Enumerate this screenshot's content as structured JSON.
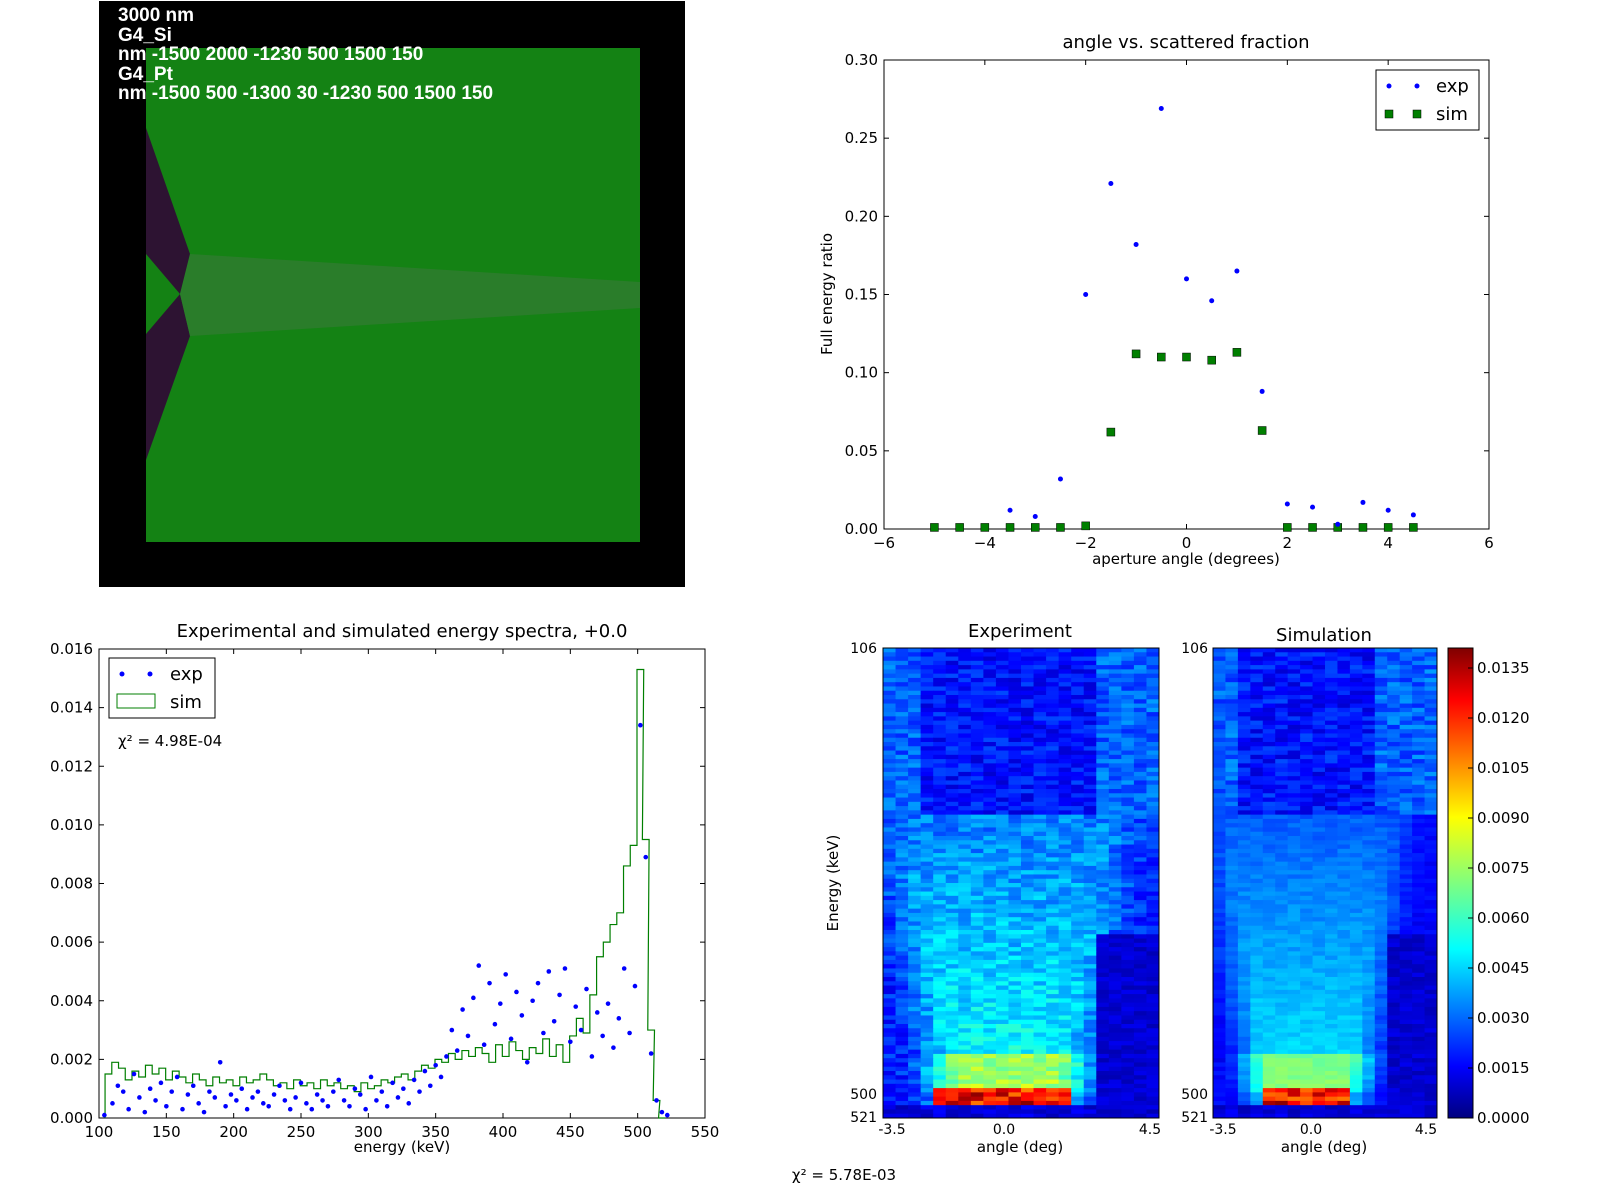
{
  "geometry_panel": {
    "labels": [
      "3000 nm",
      "G4_Si",
      "nm -1500 2000 -1230 500 1500 150",
      "G4_Pt",
      "nm -1500 500 -1300 30 -1230 500 1500 150"
    ],
    "colors": {
      "background": "#000000",
      "si": "#148214",
      "pt": "#2d1332",
      "beam": "#2a7d2a"
    }
  },
  "chart_data": [
    {
      "type": "scatter",
      "title": "angle vs. scattered fraction",
      "xlabel": "aperture angle (degrees)",
      "ylabel": "Full energy ratio",
      "xlim": [
        -6,
        6
      ],
      "ylim": [
        0,
        0.3
      ],
      "xticks": [
        "−6",
        "−4",
        "−2",
        "0",
        "2",
        "4",
        "6"
      ],
      "yticks": [
        "0.00",
        "0.05",
        "0.10",
        "0.15",
        "0.20",
        "0.25",
        "0.30"
      ],
      "legend": {
        "position": "top-right",
        "entries": [
          "exp",
          "sim"
        ]
      },
      "series": [
        {
          "name": "exp",
          "color": "#0000ff",
          "marker": "dot",
          "points": [
            [
              -3.5,
              0.012
            ],
            [
              -3,
              0.008
            ],
            [
              -2.5,
              0.032
            ],
            [
              -2,
              0.15
            ],
            [
              -1.5,
              0.221
            ],
            [
              -1,
              0.182
            ],
            [
              -0.5,
              0.269
            ],
            [
              0,
              0.16
            ],
            [
              0.5,
              0.146
            ],
            [
              1,
              0.165
            ],
            [
              1.5,
              0.088
            ],
            [
              2,
              0.016
            ],
            [
              2.5,
              0.014
            ],
            [
              3,
              0.003
            ],
            [
              3.5,
              0.017
            ],
            [
              4,
              0.012
            ],
            [
              4.5,
              0.009
            ]
          ]
        },
        {
          "name": "sim",
          "color": "#007f00",
          "marker": "square",
          "points": [
            [
              -5,
              0.001
            ],
            [
              -4.5,
              0.001
            ],
            [
              -4,
              0.001
            ],
            [
              -3.5,
              0.001
            ],
            [
              -3,
              0.001
            ],
            [
              -2.5,
              0.001
            ],
            [
              -2,
              0.002
            ],
            [
              -1.5,
              0.062
            ],
            [
              -1,
              0.112
            ],
            [
              -0.5,
              0.11
            ],
            [
              0,
              0.11
            ],
            [
              0.5,
              0.108
            ],
            [
              1,
              0.113
            ],
            [
              1.5,
              0.063
            ],
            [
              2,
              0.001
            ],
            [
              2.5,
              0.001
            ],
            [
              3,
              0.001
            ],
            [
              3.5,
              0.001
            ],
            [
              4,
              0.001
            ],
            [
              4.5,
              0.001
            ]
          ]
        }
      ]
    },
    {
      "type": "line",
      "title": "Experimental and simulated energy spectra, +0.0",
      "xlabel": "energy (keV)",
      "ylabel": "",
      "xlim": [
        100,
        550
      ],
      "ylim": [
        0,
        0.016
      ],
      "xticks": [
        "100",
        "150",
        "200",
        "250",
        "300",
        "350",
        "400",
        "450",
        "500",
        "550"
      ],
      "yticks": [
        "0.000",
        "0.002",
        "0.004",
        "0.006",
        "0.008",
        "0.010",
        "0.012",
        "0.014",
        "0.016"
      ],
      "legend": {
        "position": "top-left",
        "entries": [
          "exp",
          "sim"
        ]
      },
      "annotation": "χ² = 4.98E-04",
      "series": [
        {
          "name": "exp",
          "color": "#0000ff",
          "marker": "dot",
          "style": "scatter",
          "points": [
            [
              104,
              0.0001
            ],
            [
              110,
              0.0005
            ],
            [
              114,
              0.0011
            ],
            [
              118,
              0.0009
            ],
            [
              122,
              0.0003
            ],
            [
              126,
              0.0015
            ],
            [
              130,
              0.0007
            ],
            [
              134,
              0.0002
            ],
            [
              138,
              0.001
            ],
            [
              142,
              0.0006
            ],
            [
              146,
              0.0012
            ],
            [
              150,
              0.0004
            ],
            [
              154,
              0.0009
            ],
            [
              158,
              0.0014
            ],
            [
              162,
              0.0003
            ],
            [
              166,
              0.0008
            ],
            [
              170,
              0.0011
            ],
            [
              174,
              0.0005
            ],
            [
              178,
              0.0002
            ],
            [
              182,
              0.0009
            ],
            [
              186,
              0.0007
            ],
            [
              190,
              0.0019
            ],
            [
              194,
              0.0004
            ],
            [
              198,
              0.0008
            ],
            [
              202,
              0.0006
            ],
            [
              206,
              0.001
            ],
            [
              210,
              0.0003
            ],
            [
              214,
              0.0007
            ],
            [
              218,
              0.0009
            ],
            [
              222,
              0.0005
            ],
            [
              226,
              0.0004
            ],
            [
              230,
              0.0008
            ],
            [
              234,
              0.0011
            ],
            [
              238,
              0.0006
            ],
            [
              242,
              0.0003
            ],
            [
              246,
              0.0007
            ],
            [
              250,
              0.0012
            ],
            [
              254,
              0.0005
            ],
            [
              258,
              0.0003
            ],
            [
              262,
              0.0008
            ],
            [
              266,
              0.0006
            ],
            [
              270,
              0.0004
            ],
            [
              274,
              0.0009
            ],
            [
              278,
              0.0013
            ],
            [
              282,
              0.0006
            ],
            [
              286,
              0.0004
            ],
            [
              290,
              0.001
            ],
            [
              294,
              0.0008
            ],
            [
              298,
              0.0003
            ],
            [
              302,
              0.0014
            ],
            [
              306,
              0.0006
            ],
            [
              310,
              0.0009
            ],
            [
              314,
              0.0004
            ],
            [
              318,
              0.0012
            ],
            [
              322,
              0.0007
            ],
            [
              326,
              0.001
            ],
            [
              330,
              0.0005
            ],
            [
              334,
              0.0013
            ],
            [
              338,
              0.0009
            ],
            [
              342,
              0.0016
            ],
            [
              346,
              0.0011
            ],
            [
              350,
              0.0018
            ],
            [
              354,
              0.0014
            ],
            [
              358,
              0.0021
            ],
            [
              362,
              0.003
            ],
            [
              366,
              0.0023
            ],
            [
              370,
              0.0037
            ],
            [
              374,
              0.0028
            ],
            [
              378,
              0.0041
            ],
            [
              382,
              0.0052
            ],
            [
              386,
              0.0025
            ],
            [
              390,
              0.0046
            ],
            [
              394,
              0.0032
            ],
            [
              398,
              0.0039
            ],
            [
              402,
              0.0049
            ],
            [
              406,
              0.0027
            ],
            [
              410,
              0.0043
            ],
            [
              414,
              0.0035
            ],
            [
              418,
              0.0019
            ],
            [
              422,
              0.004
            ],
            [
              426,
              0.0046
            ],
            [
              430,
              0.0029
            ],
            [
              434,
              0.005
            ],
            [
              438,
              0.0033
            ],
            [
              442,
              0.0042
            ],
            [
              446,
              0.0051
            ],
            [
              450,
              0.0026
            ],
            [
              454,
              0.0038
            ],
            [
              458,
              0.003
            ],
            [
              462,
              0.0044
            ],
            [
              466,
              0.0021
            ],
            [
              470,
              0.0036
            ],
            [
              474,
              0.0028
            ],
            [
              478,
              0.0039
            ],
            [
              482,
              0.0024
            ],
            [
              486,
              0.0034
            ],
            [
              490,
              0.0051
            ],
            [
              494,
              0.0029
            ],
            [
              498,
              0.0045
            ],
            [
              502,
              0.0134
            ],
            [
              506,
              0.0089
            ],
            [
              510,
              0.0022
            ],
            [
              514,
              0.0006
            ],
            [
              518,
              0.0002
            ],
            [
              522,
              0.0001
            ]
          ]
        },
        {
          "name": "sim",
          "color": "#007f00",
          "style": "step",
          "points": [
            [
              107,
              0.0015
            ],
            [
              112,
              0.0019
            ],
            [
              117,
              0.0017
            ],
            [
              122,
              0.0013
            ],
            [
              127,
              0.0016
            ],
            [
              132,
              0.0014
            ],
            [
              137,
              0.0018
            ],
            [
              142,
              0.0015
            ],
            [
              147,
              0.0017
            ],
            [
              152,
              0.0013
            ],
            [
              157,
              0.0016
            ],
            [
              162,
              0.0014
            ],
            [
              167,
              0.0012
            ],
            [
              172,
              0.0015
            ],
            [
              177,
              0.0013
            ],
            [
              182,
              0.0011
            ],
            [
              187,
              0.0014
            ],
            [
              192,
              0.0012
            ],
            [
              197,
              0.0013
            ],
            [
              202,
              0.0011
            ],
            [
              207,
              0.0014
            ],
            [
              212,
              0.0012
            ],
            [
              217,
              0.0013
            ],
            [
              222,
              0.0015
            ],
            [
              227,
              0.0013
            ],
            [
              232,
              0.0011
            ],
            [
              237,
              0.0012
            ],
            [
              242,
              0.001
            ],
            [
              247,
              0.0013
            ],
            [
              252,
              0.0011
            ],
            [
              257,
              0.0012
            ],
            [
              262,
              0.001
            ],
            [
              267,
              0.0013
            ],
            [
              272,
              0.0011
            ],
            [
              277,
              0.0012
            ],
            [
              282,
              0.001
            ],
            [
              287,
              0.0011
            ],
            [
              292,
              0.0009
            ],
            [
              297,
              0.0012
            ],
            [
              302,
              0.001
            ],
            [
              307,
              0.0011
            ],
            [
              312,
              0.0013
            ],
            [
              317,
              0.0012
            ],
            [
              322,
              0.0014
            ],
            [
              327,
              0.0015
            ],
            [
              332,
              0.0013
            ],
            [
              337,
              0.0016
            ],
            [
              342,
              0.0018
            ],
            [
              347,
              0.0017
            ],
            [
              352,
              0.002
            ],
            [
              357,
              0.0019
            ],
            [
              362,
              0.0022
            ],
            [
              367,
              0.002
            ],
            [
              372,
              0.0023
            ],
            [
              377,
              0.0021
            ],
            [
              382,
              0.0024
            ],
            [
              387,
              0.0022
            ],
            [
              392,
              0.0019
            ],
            [
              397,
              0.0025
            ],
            [
              402,
              0.0021
            ],
            [
              407,
              0.0026
            ],
            [
              412,
              0.0023
            ],
            [
              417,
              0.002
            ],
            [
              422,
              0.0024
            ],
            [
              427,
              0.0022
            ],
            [
              432,
              0.0027
            ],
            [
              437,
              0.0021
            ],
            [
              442,
              0.0025
            ],
            [
              447,
              0.0019
            ],
            [
              452,
              0.0028
            ],
            [
              457,
              0.0034
            ],
            [
              462,
              0.0029
            ],
            [
              467,
              0.0042
            ],
            [
              472,
              0.0055
            ],
            [
              477,
              0.006
            ],
            [
              482,
              0.0066
            ],
            [
              487,
              0.007
            ],
            [
              492,
              0.0086
            ],
            [
              497,
              0.0093
            ],
            [
              502,
              0.0153
            ],
            [
              506,
              0.0095
            ],
            [
              510,
              0.003
            ],
            [
              514,
              0.0006
            ],
            [
              518,
              0.0
            ]
          ]
        }
      ]
    },
    {
      "type": "heatmap",
      "panels": [
        "Experiment",
        "Simulation"
      ],
      "ylabel": "Energy (keV)",
      "xlabel": "angle (deg)",
      "xticks": [
        "-3.5",
        "0.0",
        "4.5"
      ],
      "yticks": [
        "106",
        "500",
        "521"
      ],
      "xlim": [
        -3.5,
        4.5
      ],
      "ylim": [
        521,
        106
      ],
      "colorbar": {
        "ticks": [
          "0.0000",
          "0.0015",
          "0.0030",
          "0.0045",
          "0.0060",
          "0.0075",
          "0.0090",
          "0.0105",
          "0.0120",
          "0.0135"
        ],
        "max": 0.0141
      },
      "annotation": "χ² = 5.78E-03",
      "colormap": "jet"
    }
  ]
}
